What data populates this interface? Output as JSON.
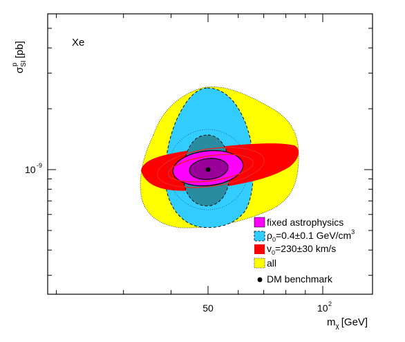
{
  "chart_data": {
    "type": "contour",
    "panel_label": "Xe",
    "xlabel_main": "m",
    "xlabel_sub": "χ",
    "xlabel_unit": "[GeV]",
    "ylabel_main": "σ",
    "ylabel_sup": "p",
    "ylabel_sub": "SI",
    "ylabel_unit": "[pb]",
    "x_scale": "log",
    "y_scale": "log",
    "x_ticks": [
      {
        "value": 50,
        "label": "50"
      },
      {
        "value": 100,
        "label": "10",
        "exp": "2"
      }
    ],
    "y_ticks": [
      {
        "value": 1e-09,
        "label": "10",
        "exp": "-9"
      }
    ],
    "benchmark": {
      "x": 50,
      "y": 1e-09,
      "label": "DM benchmark"
    },
    "series": [
      {
        "key": "all",
        "color": "#ffff00"
      },
      {
        "key": "rho",
        "color": "#33ccff"
      },
      {
        "key": "v0",
        "color": "#ff0000"
      },
      {
        "key": "fixed",
        "color": "#ff00ff"
      }
    ],
    "legend": {
      "fixed": {
        "text": "fixed astrophysics",
        "color": "#ff00ff"
      },
      "rho": {
        "sym": "ρ",
        "sub": "0",
        "text": "=0.4±0.1 GeV/cm",
        "sup": "3",
        "color": "#33ccff"
      },
      "v0": {
        "sym": "v",
        "sub": "0",
        "text": "=230±30 km/s",
        "color": "#ff0000"
      },
      "all": {
        "text": "all",
        "color": "#ffff00"
      },
      "bench": {
        "text": "DM benchmark"
      }
    }
  }
}
